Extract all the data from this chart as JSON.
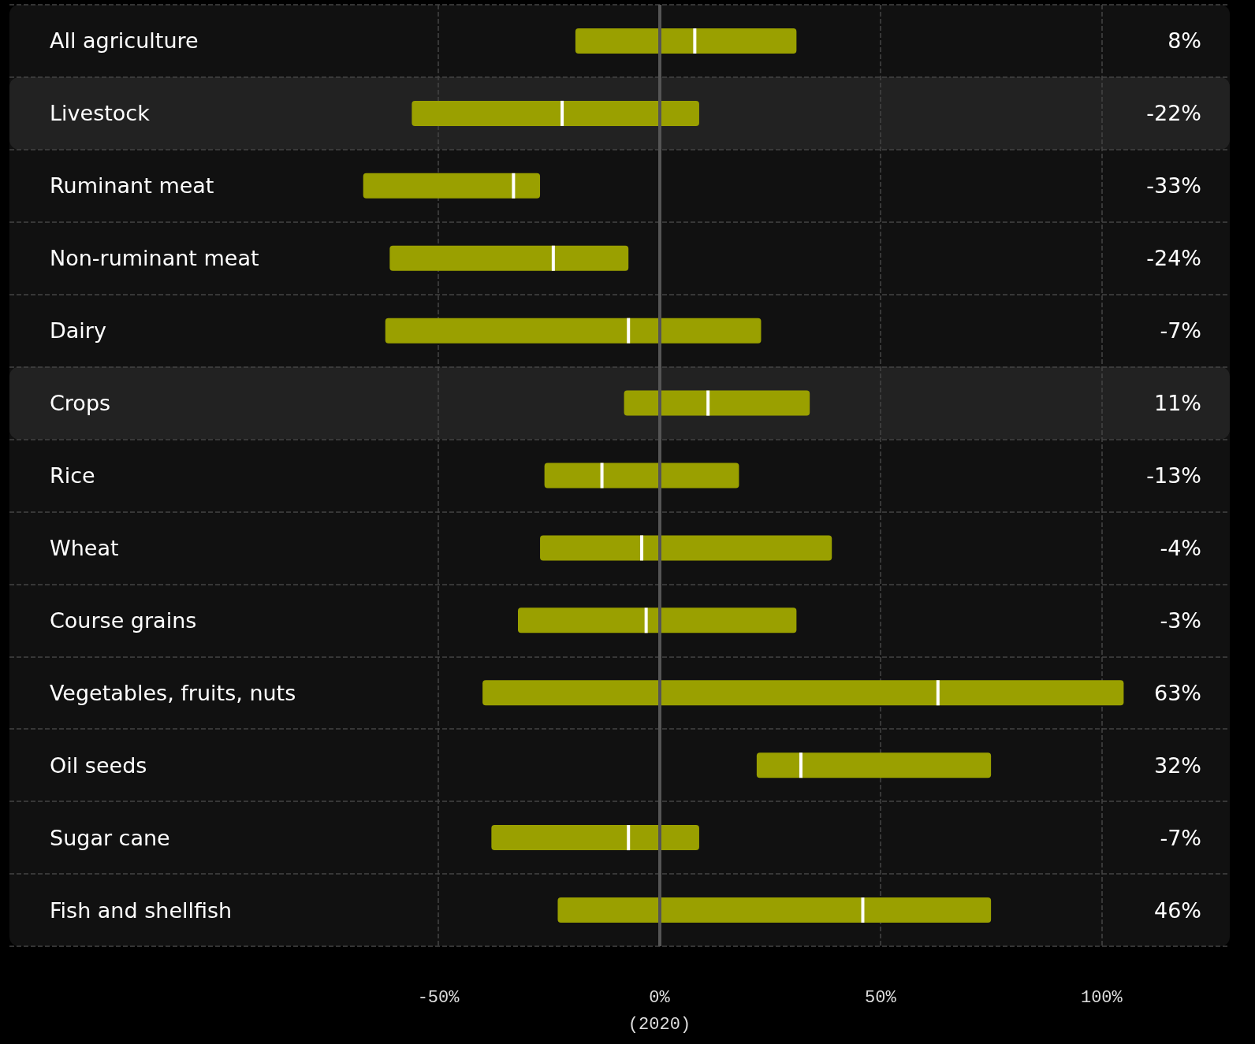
{
  "chart_data": {
    "type": "box",
    "orientation": "horizontal",
    "categories": [
      "All agriculture",
      "Livestock",
      "Ruminant meat",
      "Non-ruminant meat",
      "Dairy",
      "Crops",
      "Rice",
      "Wheat",
      "Course grains",
      "Vegetables, fruits, nuts",
      "Oil seeds",
      "Sugar cane",
      "Fish and shellfish"
    ],
    "series": [
      {
        "color": "#9aa000",
        "boxes": [
          {
            "low": -19,
            "q1": -19,
            "median": 8,
            "q3": 31,
            "high": 31
          },
          {
            "low": -56,
            "q1": -56,
            "median": -22,
            "q3": 9,
            "high": 9
          },
          {
            "low": -67,
            "q1": -67,
            "median": -33,
            "q3": -27,
            "high": -27
          },
          {
            "low": -61,
            "q1": -61,
            "median": -24,
            "q3": -7,
            "high": -7
          },
          {
            "low": -62,
            "q1": -62,
            "median": -7,
            "q3": 23,
            "high": 23
          },
          {
            "low": -8,
            "q1": -8,
            "median": 11,
            "q3": 34,
            "high": 34
          },
          {
            "low": -26,
            "q1": -26,
            "median": -13,
            "q3": 18,
            "high": 18
          },
          {
            "low": -27,
            "q1": -27,
            "median": -4,
            "q3": 39,
            "high": 39
          },
          {
            "low": -32,
            "q1": -32,
            "median": -3,
            "q3": 31,
            "high": 31
          },
          {
            "low": -40,
            "q1": -40,
            "median": 63,
            "q3": 105,
            "high": 105
          },
          {
            "low": 22,
            "q1": 22,
            "median": 32,
            "q3": 75,
            "high": 75
          },
          {
            "low": -38,
            "q1": -38,
            "median": -7,
            "q3": 9,
            "high": 9
          },
          {
            "low": -23,
            "q1": -23,
            "median": 46,
            "q3": 75,
            "high": 75
          }
        ]
      }
    ],
    "annotations": [
      "8%",
      "-22%",
      "-33%",
      "-24%",
      "-7%",
      "11%",
      "-13%",
      "-4%",
      "-3%",
      "63%",
      "32%",
      "-7%",
      "46%"
    ],
    "xlim": [
      -147,
      129
    ],
    "xticks": [
      {
        "value": -50,
        "label": "-50%"
      },
      {
        "value": 0,
        "label": "0%\n(2020)"
      },
      {
        "value": 50,
        "label": "50%"
      },
      {
        "value": 100,
        "label": "100%"
      }
    ],
    "grid": true,
    "ref_lines": [
      {
        "axis": "x",
        "value": 0,
        "color": "#555555"
      }
    ],
    "bands": [
      {
        "axis": "y",
        "from": "Livestock",
        "to": "Livestock",
        "color": "#222222"
      },
      {
        "axis": "y",
        "from": "Crops",
        "to": "Crops",
        "color": "#222222"
      }
    ]
  }
}
